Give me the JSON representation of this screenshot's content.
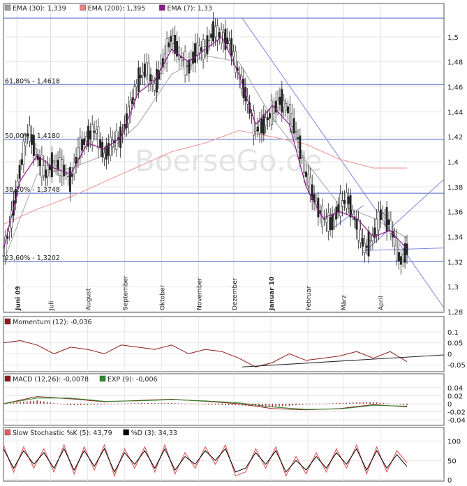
{
  "chart_data": [
    {
      "type": "line",
      "panel": "price",
      "watermark": "BoerseGo.de",
      "legend": [
        {
          "name": "EMA (30)",
          "value": "1,339",
          "color": "#a0a0a0"
        },
        {
          "name": "EMA (200)",
          "value": "1,395",
          "color": "#f08080"
        },
        {
          "name": "EMA (7)",
          "value": "1,33",
          "color": "#8b1a8b"
        }
      ],
      "ylim": [
        1.28,
        1.52
      ],
      "yticks": [
        "1,28",
        "1,3",
        "1,32",
        "1,34",
        "1,36",
        "1,38",
        "1,4",
        "1,42",
        "1,44",
        "1,46",
        "1,48",
        "1,5"
      ],
      "fib_levels": [
        {
          "label": "61,80% - 1,4618",
          "value": 1.4618
        },
        {
          "label": "50,00% - 1,4180",
          "value": 1.418
        },
        {
          "label": "38,20% - 1,3748",
          "value": 1.3748
        },
        {
          "label": "23,60% - 1,3202",
          "value": 1.3202
        }
      ],
      "months": [
        {
          "label": "Juni 09",
          "bold": true,
          "x": 8
        },
        {
          "label": "Juli",
          "bold": false,
          "x": 28
        },
        {
          "label": "August",
          "bold": false,
          "x": 50
        },
        {
          "label": "September",
          "bold": false,
          "x": 72
        },
        {
          "label": "Oktober",
          "bold": false,
          "x": 94
        },
        {
          "label": "November",
          "bold": false,
          "x": 116
        },
        {
          "label": "Dezember",
          "bold": false,
          "x": 137
        },
        {
          "label": "Januar 10",
          "bold": true,
          "x": 159
        },
        {
          "label": "Februar",
          "bold": false,
          "x": 181
        },
        {
          "label": "März",
          "bold": false,
          "x": 202
        },
        {
          "label": "April",
          "bold": false,
          "x": 224
        }
      ],
      "xlim": [
        0,
        262
      ],
      "series": [
        {
          "name": "Kurs",
          "x": [
            0,
            5,
            10,
            15,
            20,
            25,
            30,
            35,
            40,
            45,
            50,
            55,
            60,
            65,
            70,
            75,
            80,
            85,
            90,
            95,
            100,
            105,
            110,
            115,
            120,
            125,
            130,
            135,
            140,
            145,
            150,
            155,
            160,
            165,
            170,
            175,
            180,
            185,
            190,
            195,
            200,
            205,
            210,
            215,
            220,
            225,
            230,
            233,
            236,
            240
          ],
          "values": [
            1.325,
            1.355,
            1.395,
            1.425,
            1.405,
            1.39,
            1.4,
            1.395,
            1.385,
            1.41,
            1.42,
            1.425,
            1.405,
            1.415,
            1.42,
            1.44,
            1.465,
            1.475,
            1.46,
            1.48,
            1.5,
            1.485,
            1.475,
            1.49,
            1.49,
            1.505,
            1.5,
            1.495,
            1.47,
            1.45,
            1.425,
            1.43,
            1.44,
            1.45,
            1.44,
            1.42,
            1.39,
            1.37,
            1.355,
            1.35,
            1.365,
            1.37,
            1.35,
            1.33,
            1.34,
            1.36,
            1.35,
            1.335,
            1.32,
            1.33
          ]
        },
        {
          "name": "EMA (200)",
          "x": [
            0,
            20,
            40,
            60,
            80,
            100,
            120,
            140,
            160,
            180,
            200,
            220,
            240
          ],
          "values": [
            1.35,
            1.362,
            1.372,
            1.384,
            1.396,
            1.408,
            1.415,
            1.425,
            1.42,
            1.414,
            1.402,
            1.395,
            1.395
          ]
        },
        {
          "name": "EMA (30)",
          "x": [
            0,
            20,
            40,
            60,
            80,
            100,
            120,
            140,
            160,
            180,
            200,
            220,
            240
          ],
          "values": [
            1.32,
            1.39,
            1.395,
            1.405,
            1.43,
            1.47,
            1.485,
            1.48,
            1.435,
            1.4,
            1.365,
            1.355,
            1.339
          ]
        },
        {
          "name": "EMA (7)",
          "x": [
            0,
            10,
            20,
            30,
            40,
            50,
            60,
            70,
            80,
            90,
            100,
            110,
            120,
            130,
            140,
            150,
            160,
            170,
            180,
            190,
            200,
            210,
            220,
            230,
            240
          ],
          "values": [
            1.33,
            1.385,
            1.405,
            1.395,
            1.39,
            1.415,
            1.41,
            1.42,
            1.455,
            1.465,
            1.49,
            1.48,
            1.49,
            1.5,
            1.47,
            1.43,
            1.445,
            1.43,
            1.38,
            1.355,
            1.36,
            1.355,
            1.34,
            1.345,
            1.33
          ]
        }
      ]
    },
    {
      "type": "line",
      "panel": "momentum",
      "legend": [
        {
          "name": "Momentum",
          "params": "(12)",
          "value": "-0,036",
          "color": "#8b1a1a"
        }
      ],
      "ylim": [
        -0.075,
        0.125
      ],
      "yticks": [
        "-0.05",
        "0",
        "0.05",
        "0.1"
      ],
      "series": [
        {
          "name": "Momentum",
          "x": [
            0,
            10,
            20,
            30,
            40,
            50,
            60,
            70,
            80,
            90,
            100,
            110,
            120,
            130,
            140,
            150,
            160,
            170,
            180,
            190,
            200,
            210,
            220,
            230,
            240
          ],
          "values": [
            0.05,
            0.06,
            0.04,
            0.0,
            0.03,
            0.02,
            0.0,
            0.04,
            0.03,
            0.02,
            0.04,
            0.0,
            0.02,
            0.01,
            -0.02,
            -0.06,
            -0.04,
            0.0,
            -0.03,
            -0.02,
            -0.01,
            0.01,
            -0.02,
            0.01,
            -0.036
          ]
        }
      ]
    },
    {
      "type": "line",
      "panel": "macd",
      "legend": [
        {
          "name": "MACD",
          "params": "(12,26)",
          "value": "-0,0078",
          "color": "#8b1a1a"
        },
        {
          "name": "EXP",
          "params": "(9)",
          "value": "-0,006",
          "color": "#2e8b2e"
        }
      ],
      "ylim": [
        -0.05,
        0.05
      ],
      "yticks": [
        "-0.04",
        "-0.02",
        "0",
        "0.02",
        "0.04"
      ],
      "series": [
        {
          "name": "MACD",
          "x": [
            0,
            20,
            40,
            60,
            80,
            100,
            120,
            140,
            160,
            180,
            200,
            220,
            240
          ],
          "values": [
            0.0,
            0.018,
            0.012,
            0.005,
            0.008,
            0.011,
            0.006,
            0.0,
            -0.012,
            -0.015,
            -0.012,
            -0.002,
            -0.0078
          ]
        },
        {
          "name": "EXP",
          "x": [
            0,
            20,
            40,
            60,
            80,
            100,
            120,
            140,
            160,
            180,
            200,
            220,
            240
          ],
          "values": [
            0.0,
            0.014,
            0.014,
            0.006,
            0.007,
            0.01,
            0.007,
            0.002,
            -0.008,
            -0.014,
            -0.013,
            -0.004,
            -0.006
          ]
        }
      ]
    },
    {
      "type": "line",
      "panel": "stochastic",
      "legend": [
        {
          "name": "Slow Stochastic %K",
          "params": "(5)",
          "value": "43,79",
          "color": "#e06060"
        },
        {
          "name": "%D",
          "params": "(3)",
          "value": "34,33",
          "color": "#000000"
        }
      ],
      "ylim": [
        0,
        110
      ],
      "yticks": [
        "0",
        "50",
        "100"
      ],
      "series": [
        {
          "name": "%K",
          "x": [
            0,
            6,
            12,
            18,
            24,
            30,
            36,
            42,
            48,
            54,
            60,
            66,
            72,
            78,
            84,
            90,
            96,
            102,
            108,
            114,
            120,
            126,
            132,
            138,
            144,
            150,
            156,
            162,
            168,
            174,
            180,
            186,
            192,
            198,
            204,
            210,
            216,
            222,
            228,
            234,
            240
          ],
          "values": [
            90,
            20,
            85,
            30,
            80,
            20,
            90,
            15,
            85,
            25,
            90,
            10,
            80,
            30,
            85,
            20,
            90,
            15,
            70,
            30,
            85,
            40,
            90,
            10,
            20,
            80,
            30,
            85,
            10,
            60,
            15,
            70,
            20,
            80,
            30,
            90,
            15,
            85,
            20,
            75,
            44
          ]
        },
        {
          "name": "%D",
          "x": [
            0,
            6,
            12,
            18,
            24,
            30,
            36,
            42,
            48,
            54,
            60,
            66,
            72,
            78,
            84,
            90,
            96,
            102,
            108,
            114,
            120,
            126,
            132,
            138,
            144,
            150,
            156,
            162,
            168,
            174,
            180,
            186,
            192,
            198,
            204,
            210,
            216,
            222,
            228,
            234,
            240
          ],
          "values": [
            80,
            30,
            75,
            40,
            70,
            30,
            80,
            25,
            75,
            35,
            80,
            20,
            70,
            40,
            75,
            30,
            80,
            25,
            60,
            40,
            75,
            50,
            80,
            20,
            30,
            70,
            40,
            75,
            20,
            50,
            25,
            60,
            30,
            70,
            40,
            80,
            25,
            75,
            30,
            65,
            34
          ]
        }
      ]
    }
  ]
}
